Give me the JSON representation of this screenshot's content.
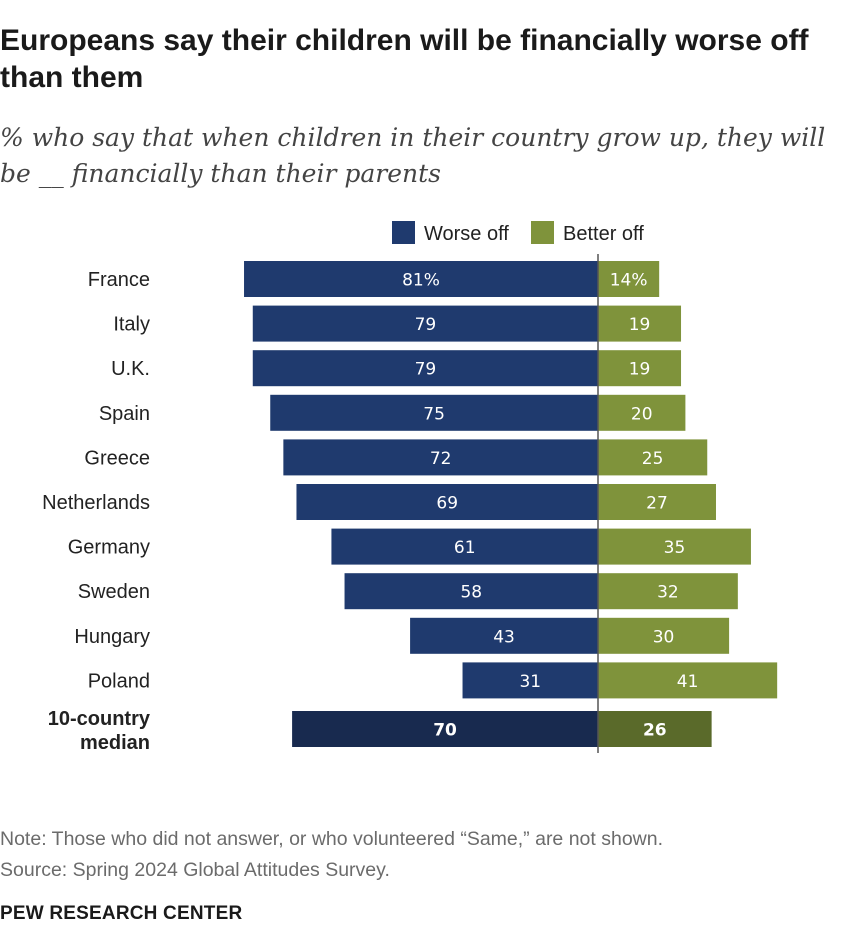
{
  "title": "Europeans say their children will be financially worse off than them",
  "subtitle": "% who say that when children in their country grow up, they will be __ financially than their parents",
  "note": "Note: Those who did not answer, or who volunteered “Same,” are not shown.",
  "source": "Source: Spring 2024 Global Attitudes Survey.",
  "brand": "PEW RESEARCH CENTER",
  "colors": {
    "worse": "#1f3a6e",
    "better": "#7f933b",
    "worse_median": "#182a4f",
    "better_median": "#5a6a2a",
    "axis": "#555555"
  },
  "chart_data": {
    "type": "bar",
    "orientation": "horizontal-diverging",
    "categories": [
      "France",
      "Italy",
      "U.K.",
      "Spain",
      "Greece",
      "Netherlands",
      "Germany",
      "Sweden",
      "Hungary",
      "Poland",
      "10-country median"
    ],
    "series": [
      {
        "name": "Worse off",
        "values": [
          81,
          79,
          79,
          75,
          72,
          69,
          61,
          58,
          43,
          31,
          70
        ]
      },
      {
        "name": "Better off",
        "values": [
          14,
          19,
          19,
          20,
          25,
          27,
          35,
          32,
          30,
          41,
          26
        ]
      }
    ],
    "value_labels": {
      "Worse off": [
        "81%",
        "79",
        "79",
        "75",
        "72",
        "69",
        "61",
        "58",
        "43",
        "31",
        "70"
      ],
      "Better off": [
        "14%",
        "19",
        "19",
        "20",
        "25",
        "27",
        "35",
        "32",
        "30",
        "41",
        "26"
      ]
    },
    "category_display": [
      "France",
      "Italy",
      "U.K.",
      "Spain",
      "Greece",
      "Netherlands",
      "Germany",
      "Sweden",
      "Hungary",
      "Poland",
      [
        "10-country",
        "median"
      ]
    ],
    "highlight_last": true,
    "legend": [
      "Worse off",
      "Better off"
    ],
    "legend_position": "top",
    "grid": false
  }
}
